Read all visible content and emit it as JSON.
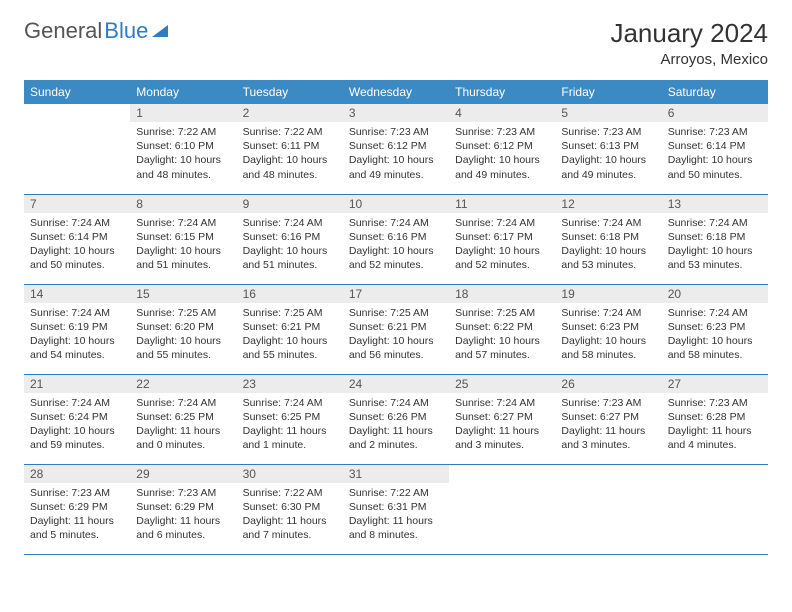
{
  "brand": {
    "part1": "General",
    "part2": "Blue"
  },
  "title": "January 2024",
  "location": "Arroyos, Mexico",
  "colors": {
    "header_bg": "#3b8ac4",
    "header_text": "#ffffff",
    "daynum_bg": "#ececec",
    "rule": "#2f7bbf",
    "text": "#333333"
  },
  "weekdays": [
    "Sunday",
    "Monday",
    "Tuesday",
    "Wednesday",
    "Thursday",
    "Friday",
    "Saturday"
  ],
  "start_offset": 1,
  "days": [
    {
      "n": 1,
      "sunrise": "7:22 AM",
      "sunset": "6:10 PM",
      "daylight": "10 hours and 48 minutes."
    },
    {
      "n": 2,
      "sunrise": "7:22 AM",
      "sunset": "6:11 PM",
      "daylight": "10 hours and 48 minutes."
    },
    {
      "n": 3,
      "sunrise": "7:23 AM",
      "sunset": "6:12 PM",
      "daylight": "10 hours and 49 minutes."
    },
    {
      "n": 4,
      "sunrise": "7:23 AM",
      "sunset": "6:12 PM",
      "daylight": "10 hours and 49 minutes."
    },
    {
      "n": 5,
      "sunrise": "7:23 AM",
      "sunset": "6:13 PM",
      "daylight": "10 hours and 49 minutes."
    },
    {
      "n": 6,
      "sunrise": "7:23 AM",
      "sunset": "6:14 PM",
      "daylight": "10 hours and 50 minutes."
    },
    {
      "n": 7,
      "sunrise": "7:24 AM",
      "sunset": "6:14 PM",
      "daylight": "10 hours and 50 minutes."
    },
    {
      "n": 8,
      "sunrise": "7:24 AM",
      "sunset": "6:15 PM",
      "daylight": "10 hours and 51 minutes."
    },
    {
      "n": 9,
      "sunrise": "7:24 AM",
      "sunset": "6:16 PM",
      "daylight": "10 hours and 51 minutes."
    },
    {
      "n": 10,
      "sunrise": "7:24 AM",
      "sunset": "6:16 PM",
      "daylight": "10 hours and 52 minutes."
    },
    {
      "n": 11,
      "sunrise": "7:24 AM",
      "sunset": "6:17 PM",
      "daylight": "10 hours and 52 minutes."
    },
    {
      "n": 12,
      "sunrise": "7:24 AM",
      "sunset": "6:18 PM",
      "daylight": "10 hours and 53 minutes."
    },
    {
      "n": 13,
      "sunrise": "7:24 AM",
      "sunset": "6:18 PM",
      "daylight": "10 hours and 53 minutes."
    },
    {
      "n": 14,
      "sunrise": "7:24 AM",
      "sunset": "6:19 PM",
      "daylight": "10 hours and 54 minutes."
    },
    {
      "n": 15,
      "sunrise": "7:25 AM",
      "sunset": "6:20 PM",
      "daylight": "10 hours and 55 minutes."
    },
    {
      "n": 16,
      "sunrise": "7:25 AM",
      "sunset": "6:21 PM",
      "daylight": "10 hours and 55 minutes."
    },
    {
      "n": 17,
      "sunrise": "7:25 AM",
      "sunset": "6:21 PM",
      "daylight": "10 hours and 56 minutes."
    },
    {
      "n": 18,
      "sunrise": "7:25 AM",
      "sunset": "6:22 PM",
      "daylight": "10 hours and 57 minutes."
    },
    {
      "n": 19,
      "sunrise": "7:24 AM",
      "sunset": "6:23 PM",
      "daylight": "10 hours and 58 minutes."
    },
    {
      "n": 20,
      "sunrise": "7:24 AM",
      "sunset": "6:23 PM",
      "daylight": "10 hours and 58 minutes."
    },
    {
      "n": 21,
      "sunrise": "7:24 AM",
      "sunset": "6:24 PM",
      "daylight": "10 hours and 59 minutes."
    },
    {
      "n": 22,
      "sunrise": "7:24 AM",
      "sunset": "6:25 PM",
      "daylight": "11 hours and 0 minutes."
    },
    {
      "n": 23,
      "sunrise": "7:24 AM",
      "sunset": "6:25 PM",
      "daylight": "11 hours and 1 minute."
    },
    {
      "n": 24,
      "sunrise": "7:24 AM",
      "sunset": "6:26 PM",
      "daylight": "11 hours and 2 minutes."
    },
    {
      "n": 25,
      "sunrise": "7:24 AM",
      "sunset": "6:27 PM",
      "daylight": "11 hours and 3 minutes."
    },
    {
      "n": 26,
      "sunrise": "7:23 AM",
      "sunset": "6:27 PM",
      "daylight": "11 hours and 3 minutes."
    },
    {
      "n": 27,
      "sunrise": "7:23 AM",
      "sunset": "6:28 PM",
      "daylight": "11 hours and 4 minutes."
    },
    {
      "n": 28,
      "sunrise": "7:23 AM",
      "sunset": "6:29 PM",
      "daylight": "11 hours and 5 minutes."
    },
    {
      "n": 29,
      "sunrise": "7:23 AM",
      "sunset": "6:29 PM",
      "daylight": "11 hours and 6 minutes."
    },
    {
      "n": 30,
      "sunrise": "7:22 AM",
      "sunset": "6:30 PM",
      "daylight": "11 hours and 7 minutes."
    },
    {
      "n": 31,
      "sunrise": "7:22 AM",
      "sunset": "6:31 PM",
      "daylight": "11 hours and 8 minutes."
    }
  ]
}
